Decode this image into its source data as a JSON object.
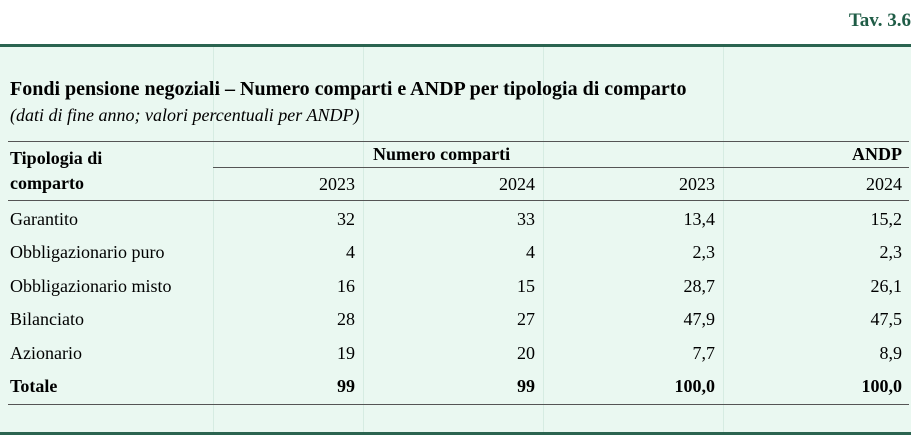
{
  "table_id": "Tav. 3.6",
  "title": "Fondi pensione negoziali – Numero comparti e ANDP per tipologia di comparto",
  "subtitle": "(dati di fine anno; valori percentuali per ANDP)",
  "header": {
    "row_label_line1": "Tipologia di",
    "row_label_line2": "comparto",
    "group_numero": "Numero comparti",
    "group_andp": "ANDP",
    "years": [
      "2023",
      "2024",
      "2023",
      "2024"
    ]
  },
  "rows": [
    {
      "label": "Garantito",
      "values": [
        "32",
        "33",
        "13,4",
        "15,2"
      ]
    },
    {
      "label": "Obbligazionario puro",
      "values": [
        "4",
        "4",
        "2,3",
        "2,3"
      ]
    },
    {
      "label": "Obbligazionario misto",
      "values": [
        "16",
        "15",
        "28,7",
        "26,1"
      ]
    },
    {
      "label": "Bilanciato",
      "values": [
        "28",
        "27",
        "47,9",
        "47,5"
      ]
    },
    {
      "label": "Azionario",
      "values": [
        "19",
        "20",
        "7,7",
        "8,9"
      ]
    }
  ],
  "total": {
    "label": "Totale",
    "values": [
      "99",
      "99",
      "100,0",
      "100,0"
    ]
  },
  "colors": {
    "accent": "#2b6450",
    "background": "#eaf8f1"
  }
}
